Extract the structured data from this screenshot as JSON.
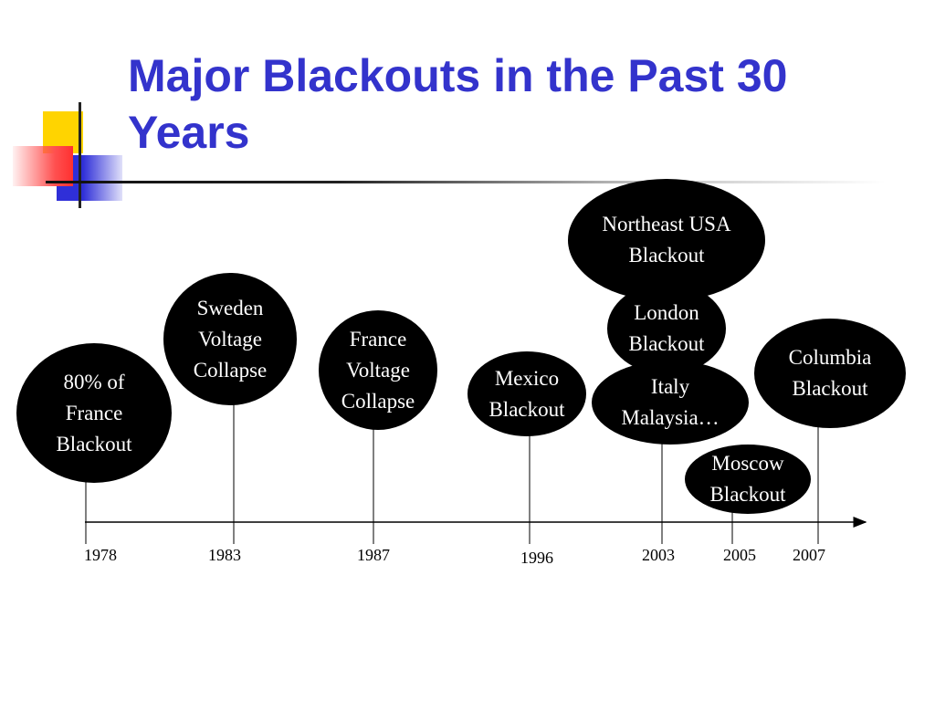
{
  "slide": {
    "title": "Major Blackouts in the Past 30 Years"
  },
  "timeline": {
    "years": [
      "1978",
      "1983",
      "1987",
      "1996",
      "2003",
      "2005",
      "2007"
    ],
    "events": [
      {
        "label": "80% of\nFrance\nBlackout"
      },
      {
        "label": "Sweden\nVoltage\nCollapse"
      },
      {
        "label": "France\nVoltage\nCollapse"
      },
      {
        "label": "Mexico\nBlackout"
      },
      {
        "label": "London\nBlackout"
      },
      {
        "label": "Italy\nMalaysia…"
      },
      {
        "label": "Northeast USA\nBlackout"
      },
      {
        "label": "Moscow\nBlackout"
      },
      {
        "label": "Columbia\nBlackout"
      }
    ]
  }
}
